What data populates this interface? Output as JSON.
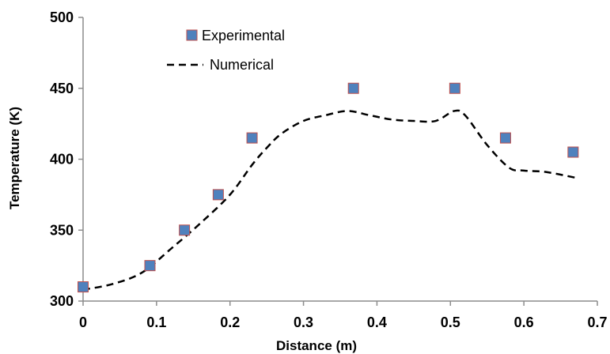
{
  "chart_data": {
    "type": "scatter",
    "title": "",
    "xlabel": "Distance (m)",
    "ylabel": "Temperature (K)",
    "xlim": [
      0,
      0.7
    ],
    "ylim": [
      300,
      500
    ],
    "x_ticks": [
      "0",
      "0.1",
      "0.2",
      "0.3",
      "0.4",
      "0.5",
      "0.6",
      "0.7"
    ],
    "y_ticks": [
      "300",
      "350",
      "400",
      "450",
      "500"
    ],
    "grid": false,
    "legend_position": "top-left",
    "series": [
      {
        "name": "Experimental",
        "style": "square-marker",
        "color": "#4F81BD",
        "edge_color": "#C0504D",
        "x": [
          0.0,
          0.091,
          0.138,
          0.184,
          0.23,
          0.368,
          0.506,
          0.575,
          0.667
        ],
        "y": [
          310,
          325,
          350,
          375,
          415,
          450,
          450,
          415,
          405
        ]
      },
      {
        "name": "Numerical",
        "style": "dashed-line",
        "color": "#000000",
        "x": [
          0.0,
          0.04,
          0.08,
          0.12,
          0.16,
          0.2,
          0.23,
          0.25,
          0.27,
          0.3,
          0.33,
          0.36,
          0.39,
          0.42,
          0.45,
          0.48,
          0.505,
          0.52,
          0.55,
          0.58,
          0.6,
          0.63,
          0.67
        ],
        "y": [
          308,
          312,
          320,
          337,
          355,
          375,
          396,
          408,
          418,
          427,
          431,
          434,
          431,
          428,
          427,
          427,
          434,
          431,
          410,
          394,
          392,
          391,
          387
        ]
      }
    ]
  }
}
